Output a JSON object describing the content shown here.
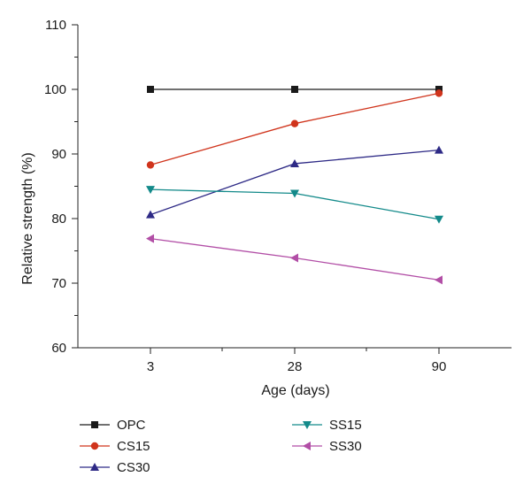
{
  "chart_data": {
    "type": "line",
    "xlabel": "Age (days)",
    "ylabel": "Relative strength (%)",
    "categories": [
      "3",
      "28",
      "90"
    ],
    "ylim": [
      60,
      110
    ],
    "yticks": [
      60,
      70,
      80,
      90,
      100,
      110
    ],
    "grid": false,
    "legend_position": "bottom",
    "series": [
      {
        "name": "OPC",
        "values": [
          100,
          100,
          100
        ],
        "color": "#1a1a1a",
        "marker": "square"
      },
      {
        "name": "CS15",
        "values": [
          88.3,
          94.7,
          99.4
        ],
        "color": "#d0341c",
        "marker": "circle"
      },
      {
        "name": "CS30",
        "values": [
          80.6,
          88.5,
          90.6
        ],
        "color": "#2e2a86",
        "marker": "triangle-up"
      },
      {
        "name": "SS15",
        "values": [
          84.5,
          83.9,
          79.9
        ],
        "color": "#138a8a",
        "marker": "triangle-down"
      },
      {
        "name": "SS30",
        "values": [
          76.9,
          73.9,
          70.5
        ],
        "color": "#b24ea6",
        "marker": "triangle-left"
      }
    ]
  }
}
